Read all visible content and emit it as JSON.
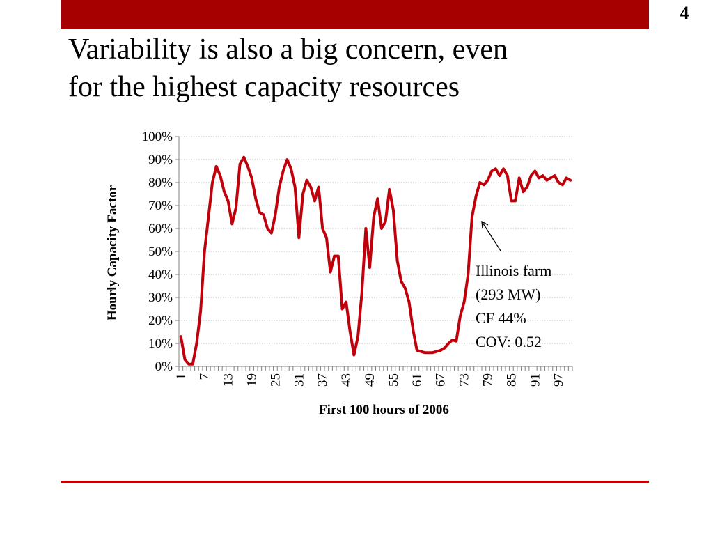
{
  "slide": {
    "number": "4",
    "title_line1": "Variability is also a big concern, even",
    "title_line2": "for the highest capacity resources"
  },
  "colors": {
    "bar": "#a60000",
    "series": "#c0000b",
    "rule": "#c00000",
    "grid": "#bfbfbf"
  },
  "annotation": {
    "line1": "Illinois farm",
    "line2": "(293 MW)",
    "line3": "CF 44%",
    "line4": "COV: 0.52"
  },
  "chart_data": {
    "type": "line",
    "title": "",
    "xlabel": "First 100 hours of 2006",
    "ylabel": "Hourly Capacity Factor",
    "ylim": [
      0,
      1
    ],
    "y_ticks": [
      "0%",
      "10%",
      "20%",
      "30%",
      "40%",
      "50%",
      "60%",
      "70%",
      "80%",
      "90%",
      "100%"
    ],
    "x_tick_labels": [
      "1",
      "7",
      "13",
      "19",
      "25",
      "31",
      "37",
      "43",
      "49",
      "55",
      "61",
      "67",
      "73",
      "79",
      "85",
      "91",
      "97"
    ],
    "x_count": 100,
    "grid": "horizontal dotted",
    "legend": "none",
    "series": [
      {
        "values": [
          0.13,
          0.03,
          0.01,
          0.01,
          0.1,
          0.24,
          0.5,
          0.65,
          0.8,
          0.87,
          0.83,
          0.76,
          0.72,
          0.62,
          0.69,
          0.88,
          0.91,
          0.87,
          0.82,
          0.73,
          0.67,
          0.66,
          0.6,
          0.58,
          0.66,
          0.78,
          0.85,
          0.9,
          0.86,
          0.78,
          0.56,
          0.75,
          0.81,
          0.78,
          0.72,
          0.78,
          0.6,
          0.56,
          0.41,
          0.48,
          0.48,
          0.25,
          0.28,
          0.15,
          0.05,
          0.13,
          0.32,
          0.6,
          0.43,
          0.65,
          0.73,
          0.6,
          0.63,
          0.77,
          0.68,
          0.46,
          0.37,
          0.34,
          0.28,
          0.16,
          0.07,
          0.065,
          0.06,
          0.06,
          0.06,
          0.065,
          0.07,
          0.08,
          0.1,
          0.115,
          0.11,
          0.22,
          0.28,
          0.4,
          0.65,
          0.74,
          0.8,
          0.79,
          0.81,
          0.85,
          0.86,
          0.83,
          0.86,
          0.83,
          0.72,
          0.72,
          0.82,
          0.76,
          0.78,
          0.83,
          0.85,
          0.82,
          0.83,
          0.81,
          0.82,
          0.83,
          0.8,
          0.79,
          0.82,
          0.81
        ]
      }
    ]
  }
}
